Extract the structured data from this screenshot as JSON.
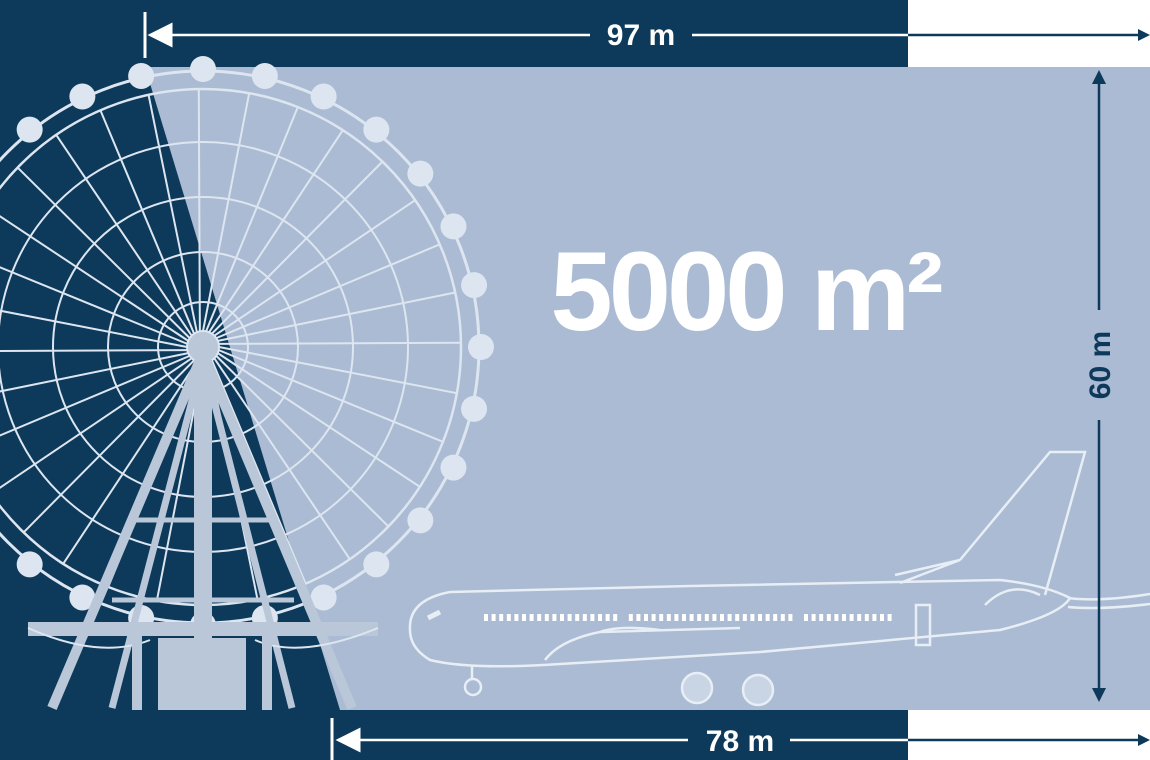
{
  "area_label": "5000 m²",
  "dimensions": {
    "top_width": "97 m",
    "bottom_width": "78 m",
    "height": "60 m"
  },
  "colors": {
    "navy": "#0d3a5a",
    "area_fill": "#aabbd3",
    "outline": "#e8eef5",
    "ferris_solid": "#b9c7d8"
  },
  "illustrations": [
    "ferris-wheel",
    "airplane"
  ]
}
